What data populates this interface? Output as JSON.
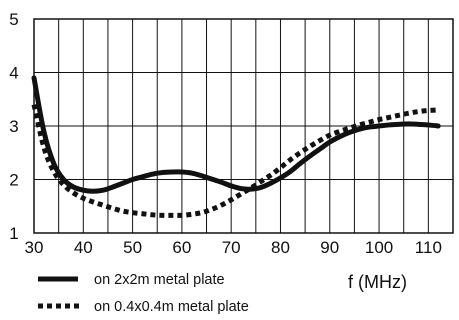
{
  "chart_data": {
    "type": "line",
    "title": "",
    "xlabel": "f (MHz)",
    "ylabel": "",
    "xlim": [
      30,
      115
    ],
    "ylim": [
      1,
      5
    ],
    "x_ticks": [
      30,
      40,
      50,
      60,
      70,
      80,
      90,
      100,
      110
    ],
    "y_ticks": [
      1,
      2,
      3,
      4,
      5
    ],
    "x_tick_labels": [
      "30",
      "40",
      "50",
      "60",
      "70",
      "80",
      "90",
      "100",
      "110"
    ],
    "y_tick_labels": [
      "1",
      "2",
      "3",
      "4",
      "5"
    ],
    "grid_x": [
      35,
      40,
      45,
      50,
      55,
      60,
      65,
      70,
      75,
      80,
      85,
      90,
      95,
      100,
      105,
      110
    ],
    "grid_y": [
      2,
      3,
      4
    ],
    "legend_position": "bottom-left",
    "series": [
      {
        "name": "on 2x2m metal plate",
        "style": "solid",
        "color": "#111111",
        "x": [
          30,
          32,
          34,
          36,
          38,
          40,
          42,
          44,
          46,
          48,
          50,
          52,
          54,
          56,
          58,
          60,
          62,
          64,
          66,
          68,
          70,
          72,
          74,
          76,
          78,
          80,
          82,
          84,
          86,
          88,
          90,
          92,
          94,
          96,
          98,
          100,
          102,
          104,
          106,
          108,
          110,
          112
        ],
        "y": [
          3.9,
          2.9,
          2.3,
          2.0,
          1.86,
          1.8,
          1.78,
          1.8,
          1.86,
          1.93,
          2.0,
          2.05,
          2.1,
          2.13,
          2.14,
          2.14,
          2.12,
          2.07,
          2.01,
          1.95,
          1.88,
          1.83,
          1.82,
          1.85,
          1.93,
          2.03,
          2.15,
          2.3,
          2.44,
          2.57,
          2.7,
          2.8,
          2.88,
          2.94,
          2.98,
          3.0,
          3.02,
          3.03,
          3.04,
          3.03,
          3.02,
          3.0
        ]
      },
      {
        "name": "on 0.4x0.4m metal plate",
        "style": "dotted",
        "color": "#111111",
        "x": [
          30,
          32,
          34,
          36,
          38,
          40,
          42,
          44,
          46,
          48,
          50,
          52,
          54,
          56,
          58,
          60,
          62,
          64,
          66,
          68,
          70,
          72,
          74,
          76,
          78,
          80,
          82,
          84,
          86,
          88,
          90,
          92,
          94,
          96,
          98,
          100,
          102,
          104,
          106,
          108,
          110,
          112
        ],
        "y": [
          3.4,
          2.6,
          2.15,
          1.9,
          1.75,
          1.65,
          1.58,
          1.52,
          1.46,
          1.41,
          1.38,
          1.36,
          1.34,
          1.33,
          1.33,
          1.33,
          1.35,
          1.38,
          1.44,
          1.52,
          1.62,
          1.73,
          1.84,
          1.96,
          2.08,
          2.22,
          2.37,
          2.5,
          2.62,
          2.73,
          2.83,
          2.9,
          2.96,
          3.02,
          3.07,
          3.12,
          3.16,
          3.2,
          3.24,
          3.27,
          3.29,
          3.3
        ]
      }
    ]
  }
}
